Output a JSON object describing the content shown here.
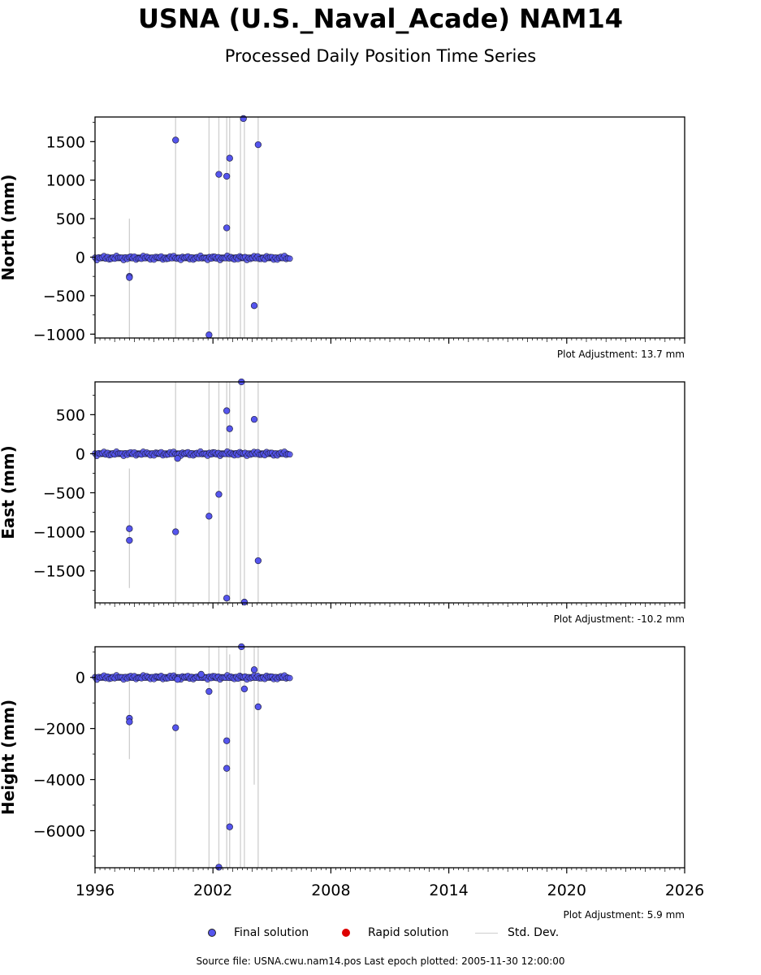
{
  "title": "USNA (U.S._Naval_Acade) NAM14",
  "subtitle": "Processed Daily Position Time Series",
  "footer": "Source file: USNA.cwu.nam14.pos  Last epoch plotted: 2005-11-30 12:00:00",
  "legend": {
    "final": "Final solution",
    "rapid": "Rapid solution",
    "std": "Std. Dev."
  },
  "colors": {
    "final": "#5555ee",
    "final_edge": "#222244",
    "rapid": "#dd0000",
    "std": "#cfcfcf"
  },
  "chart_data": [
    {
      "type": "scatter",
      "ylabel": "North (mm)",
      "adjustment": "Plot Adjustment: 13.7 mm",
      "xlim": [
        1996,
        2026
      ],
      "ylim": [
        -1050,
        1820
      ],
      "yticks": [
        -1000,
        -500,
        0,
        500,
        1000,
        1500
      ],
      "yticklabels": [
        "−1000",
        "−500",
        "0",
        "500",
        "1000",
        "1500"
      ],
      "baseline": {
        "x_start": 1996.0,
        "x_end": 2005.92,
        "y": -10
      },
      "outliers": [
        {
          "x": 1997.75,
          "y": -250
        },
        {
          "x": 1997.75,
          "y": -265
        },
        {
          "x": 2000.1,
          "y": 1520
        },
        {
          "x": 2001.8,
          "y": -1010
        },
        {
          "x": 2002.3,
          "y": 1075
        },
        {
          "x": 2002.7,
          "y": 1050
        },
        {
          "x": 2002.7,
          "y": 380
        },
        {
          "x": 2002.85,
          "y": 1285
        },
        {
          "x": 2003.55,
          "y": 1800
        },
        {
          "x": 2004.1,
          "y": -630
        },
        {
          "x": 2004.3,
          "y": 1460
        }
      ],
      "std_dev": [
        {
          "x": 1997.75,
          "y0": -1050,
          "y1": 500
        },
        {
          "x": 2000.1,
          "y0": -1050,
          "y1": 1820
        },
        {
          "x": 2001.8,
          "y0": -1050,
          "y1": 1820
        },
        {
          "x": 2002.3,
          "y0": -1050,
          "y1": 1820
        },
        {
          "x": 2002.7,
          "y0": -1050,
          "y1": 1820
        },
        {
          "x": 2002.85,
          "y0": -1050,
          "y1": 1820
        },
        {
          "x": 2003.4,
          "y0": -1050,
          "y1": 1820
        },
        {
          "x": 2003.6,
          "y0": -1050,
          "y1": 1820
        },
        {
          "x": 2004.3,
          "y0": -1050,
          "y1": 1820
        }
      ]
    },
    {
      "type": "scatter",
      "ylabel": "East (mm)",
      "adjustment": "Plot Adjustment: -10.2 mm",
      "xlim": [
        1996,
        2026
      ],
      "ylim": [
        -1910,
        920
      ],
      "yticks": [
        -1500,
        -1000,
        -500,
        0,
        500
      ],
      "yticklabels": [
        "−1500",
        "−1000",
        "−500",
        "0",
        "500"
      ],
      "baseline": {
        "x_start": 1996.0,
        "x_end": 2005.92,
        "y": 0
      },
      "outliers": [
        {
          "x": 1997.75,
          "y": -960
        },
        {
          "x": 1997.75,
          "y": -1110
        },
        {
          "x": 2000.1,
          "y": -1000
        },
        {
          "x": 2000.2,
          "y": -60
        },
        {
          "x": 2001.8,
          "y": -800
        },
        {
          "x": 2002.3,
          "y": -520
        },
        {
          "x": 2002.7,
          "y": 550
        },
        {
          "x": 2002.7,
          "y": -1850
        },
        {
          "x": 2002.85,
          "y": 320
        },
        {
          "x": 2003.45,
          "y": 920
        },
        {
          "x": 2003.6,
          "y": -1900
        },
        {
          "x": 2004.1,
          "y": 440
        },
        {
          "x": 2004.3,
          "y": -1370
        }
      ],
      "std_dev": [
        {
          "x": 1997.75,
          "y0": -1720,
          "y1": -190
        },
        {
          "x": 2000.1,
          "y0": -1910,
          "y1": 920
        },
        {
          "x": 2001.8,
          "y0": -1910,
          "y1": 920
        },
        {
          "x": 2002.3,
          "y0": -1910,
          "y1": 920
        },
        {
          "x": 2002.7,
          "y0": -1910,
          "y1": 920
        },
        {
          "x": 2002.85,
          "y0": -1910,
          "y1": 920
        },
        {
          "x": 2003.4,
          "y0": -1910,
          "y1": 920
        },
        {
          "x": 2003.6,
          "y0": -1910,
          "y1": 920
        },
        {
          "x": 2004.3,
          "y0": -1910,
          "y1": 920
        }
      ]
    },
    {
      "type": "scatter",
      "ylabel": "Height (mm)",
      "adjustment": "Plot Adjustment: 5.9 mm",
      "xlim": [
        1996,
        2026
      ],
      "ylim": [
        -7450,
        1200
      ],
      "yticks": [
        -6000,
        -4000,
        -2000,
        0
      ],
      "yticklabels": [
        "−6000",
        "−4000",
        "−2000",
        "0"
      ],
      "xticks": [
        1996,
        2002,
        2008,
        2014,
        2020,
        2026
      ],
      "xticklabels": [
        "1996",
        "2002",
        "2008",
        "2014",
        "2020",
        "2026"
      ],
      "baseline": {
        "x_start": 1996.0,
        "x_end": 2005.92,
        "y": 0
      },
      "outliers": [
        {
          "x": 1997.75,
          "y": -1600
        },
        {
          "x": 1997.75,
          "y": -1740
        },
        {
          "x": 2000.1,
          "y": -1970
        },
        {
          "x": 2000.2,
          "y": -80
        },
        {
          "x": 2001.4,
          "y": 120
        },
        {
          "x": 2001.8,
          "y": -550
        },
        {
          "x": 2002.3,
          "y": -7430
        },
        {
          "x": 2002.7,
          "y": -2480
        },
        {
          "x": 2002.7,
          "y": -3560
        },
        {
          "x": 2002.85,
          "y": -5850
        },
        {
          "x": 2003.45,
          "y": 1200
        },
        {
          "x": 2003.6,
          "y": -450
        },
        {
          "x": 2004.1,
          "y": 300
        },
        {
          "x": 2004.3,
          "y": -1150
        }
      ],
      "std_dev": [
        {
          "x": 1997.75,
          "y0": -3200,
          "y1": 0
        },
        {
          "x": 2000.1,
          "y0": -7450,
          "y1": 1200
        },
        {
          "x": 2001.8,
          "y0": -7450,
          "y1": 1200
        },
        {
          "x": 2002.3,
          "y0": -7450,
          "y1": 1200
        },
        {
          "x": 2002.7,
          "y0": -7450,
          "y1": 1200
        },
        {
          "x": 2002.85,
          "y0": -7450,
          "y1": 900
        },
        {
          "x": 2003.4,
          "y0": -7450,
          "y1": 1200
        },
        {
          "x": 2003.6,
          "y0": -7450,
          "y1": 1200
        },
        {
          "x": 2004.1,
          "y0": -4200,
          "y1": 1200
        },
        {
          "x": 2004.3,
          "y0": -7450,
          "y1": 1200
        }
      ]
    }
  ]
}
